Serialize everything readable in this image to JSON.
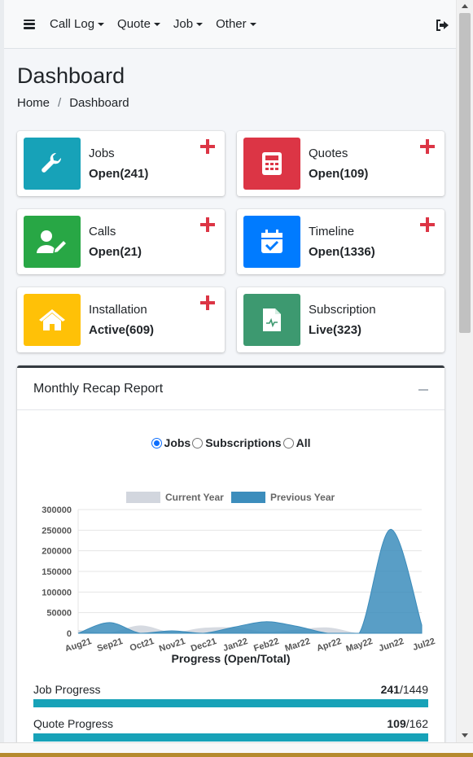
{
  "nav": {
    "menus": [
      {
        "label": "Call Log"
      },
      {
        "label": "Quote"
      },
      {
        "label": "Job"
      },
      {
        "label": "Other"
      }
    ],
    "menu_icon": "hamburger-icon",
    "logout_icon": "sign-out-icon"
  },
  "page": {
    "title": "Dashboard",
    "breadcrumb": {
      "home": "Home",
      "separator": "/",
      "current": "Dashboard"
    }
  },
  "boxes": [
    {
      "label": "Jobs",
      "value": "Open(241)",
      "icon": "wrench-icon",
      "color": "#17a2b8",
      "has_add": true
    },
    {
      "label": "Quotes",
      "value": "Open(109)",
      "icon": "calculator-icon",
      "color": "#dc3545",
      "has_add": true
    },
    {
      "label": "Calls",
      "value": "Open(21)",
      "icon": "user-edit-icon",
      "color": "#28a745",
      "has_add": true
    },
    {
      "label": "Timeline",
      "value": "Open(1336)",
      "icon": "calendar-check-icon",
      "color": "#007bff",
      "has_add": true
    },
    {
      "label": "Installation",
      "value": "Active(609)",
      "icon": "home-icon",
      "color": "#ffc107",
      "has_add": true
    },
    {
      "label": "Subscription",
      "value": "Live(323)",
      "icon": "file-chart-icon",
      "color": "#3d9970",
      "has_add": false
    }
  ],
  "add_icon_color": "#dc3545",
  "recap": {
    "title": "Monthly Recap Report",
    "radios": [
      {
        "label": "Jobs",
        "checked": true
      },
      {
        "label": "Subscriptions",
        "checked": false
      },
      {
        "label": "All",
        "checked": false
      }
    ],
    "progress_title": "Progress (Open/Total)",
    "progress": [
      {
        "label": "Job Progress",
        "open": "241",
        "total": "/1449",
        "fraction": 1.0
      },
      {
        "label": "Quote Progress",
        "open": "109",
        "total": "/162",
        "fraction": 1.0
      }
    ]
  },
  "chart_data": {
    "type": "area",
    "categories": [
      "Aug21",
      "Sep21",
      "Oct21",
      "Nov21",
      "Dec21",
      "Jan22",
      "Feb22",
      "Mar22",
      "Apr22",
      "May22",
      "Jun22",
      "Jul22"
    ],
    "series": [
      {
        "name": "Current Year",
        "color": "#d2d6de",
        "values": [
          8000,
          2000,
          19000,
          3000,
          13000,
          14000,
          4000,
          9000,
          14000,
          0,
          0,
          0
        ]
      },
      {
        "name": "Previous Year",
        "color": "#3c8dbc",
        "values": [
          0,
          26000,
          0,
          6000,
          0,
          15000,
          28000,
          17000,
          0,
          0,
          252000,
          20000
        ]
      }
    ],
    "ylim": [
      0,
      300000
    ],
    "yticks": [
      0,
      50000,
      100000,
      150000,
      200000,
      250000,
      300000
    ],
    "grid": true,
    "legend": "top"
  }
}
